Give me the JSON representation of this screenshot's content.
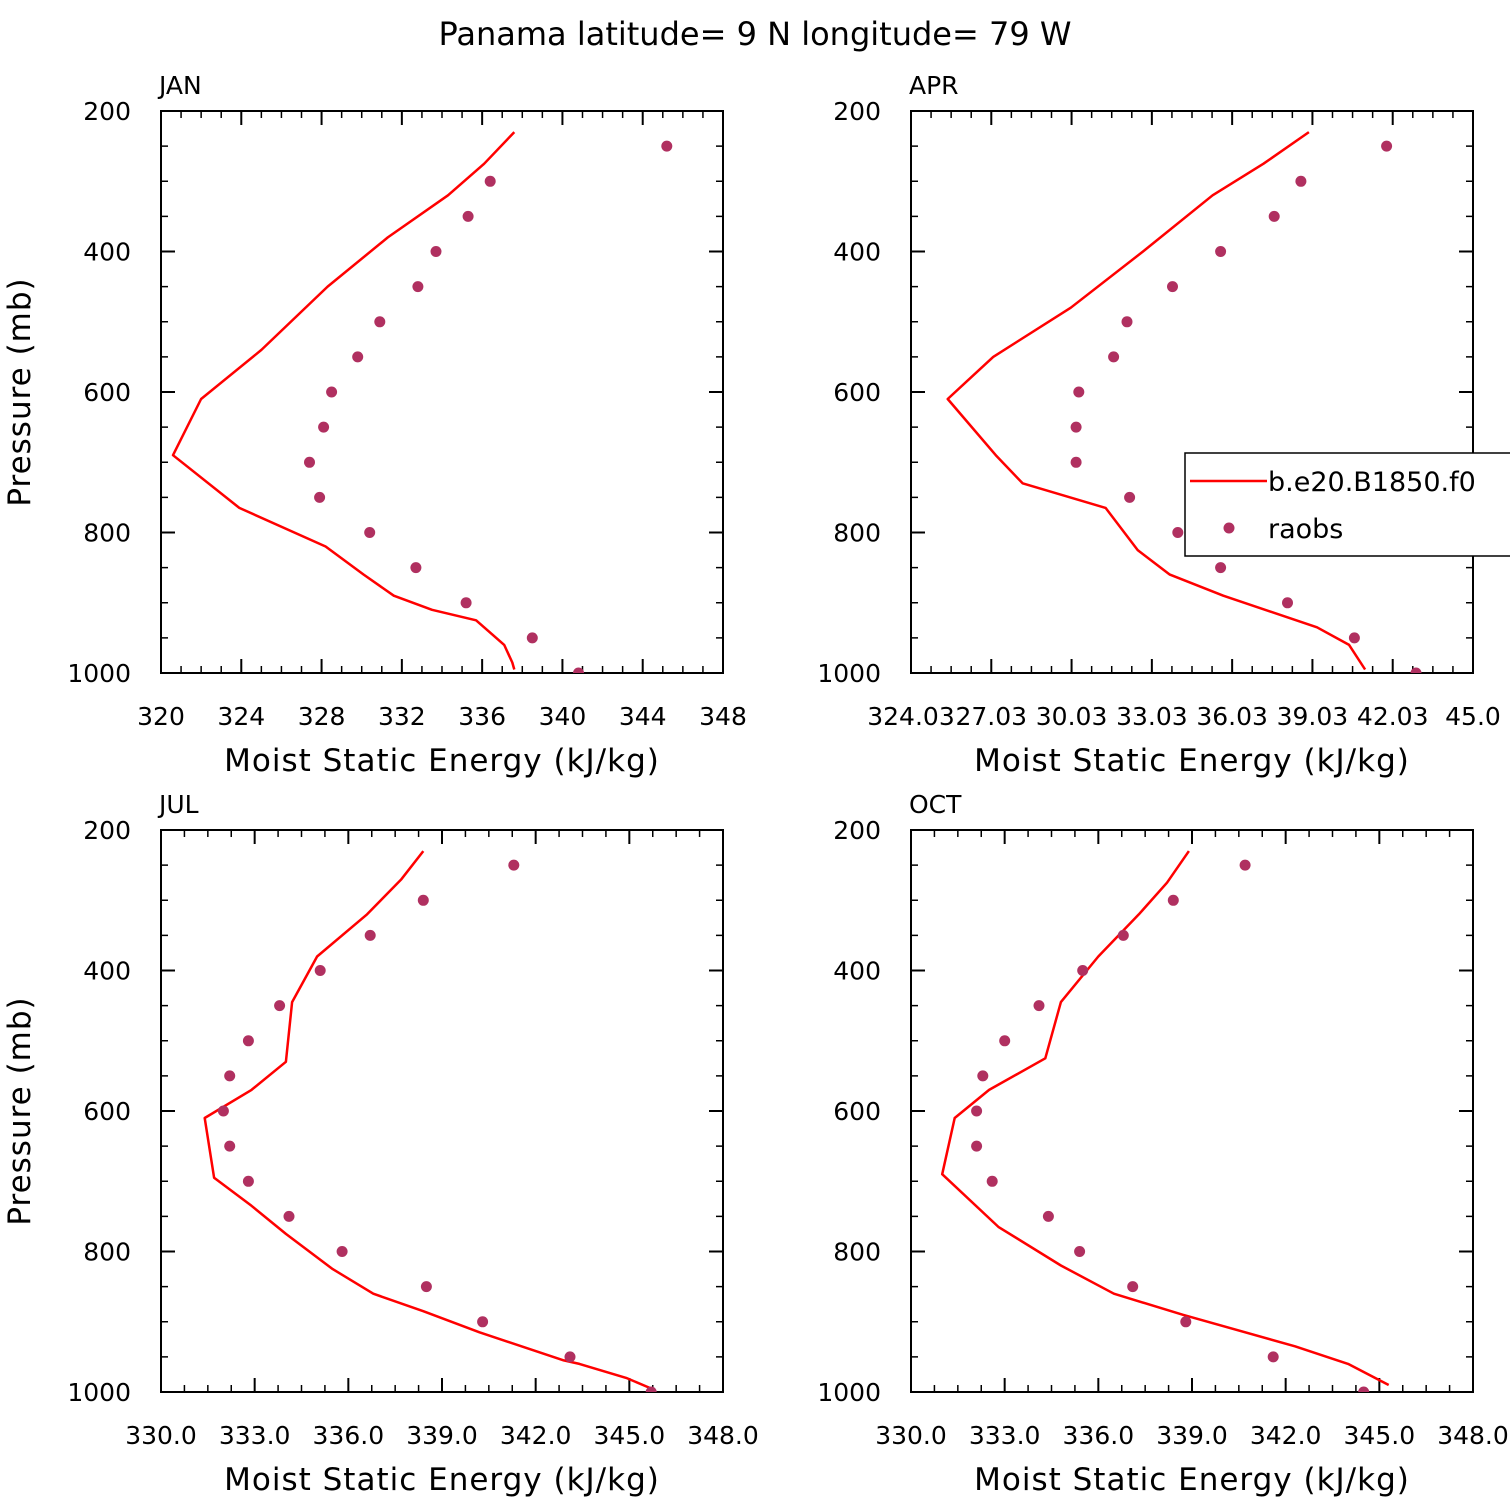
{
  "title": "Panama  latitude= 9 N longitude= 79 W",
  "colors": {
    "model": "#ff0000",
    "obs": "#b03060"
  },
  "legend": {
    "model_label": "b.e20.B1850.f0",
    "obs_label": "raobs"
  },
  "chart_data": [
    {
      "type": "line",
      "panel_label": "JAN",
      "xlabel": "Moist Static Energy (kJ/kg)",
      "ylabel": "Pressure (mb)",
      "xlim": [
        320,
        348
      ],
      "ylim": [
        1000,
        200
      ],
      "xticks": [
        320,
        324,
        328,
        332,
        336,
        340,
        344,
        348
      ],
      "xtick_labels": [
        "320",
        "324",
        "328",
        "332",
        "336",
        "340",
        "344",
        "348"
      ],
      "yticks": [
        200,
        400,
        600,
        800,
        1000
      ],
      "ytick_labels": [
        "200",
        "400",
        "600",
        "800",
        "1000"
      ],
      "legend_visible": false,
      "series": [
        {
          "kind": "line",
          "x": [
            337.6,
            337.5,
            337.1,
            335.7,
            333.5,
            331.6,
            330.1,
            328.2,
            323.9,
            320.6,
            322.0,
            325.0,
            328.3,
            331.3,
            334.3,
            336.1,
            337.6
          ],
          "y": [
            995,
            985,
            960,
            925,
            910,
            890,
            860,
            820,
            765,
            690,
            610,
            540,
            450,
            380,
            320,
            275,
            230
          ]
        },
        {
          "kind": "scatter",
          "x": [
            340.8,
            338.5,
            335.2,
            332.7,
            330.4,
            327.9,
            327.4,
            328.1,
            328.5,
            329.8,
            330.9,
            332.8,
            333.7,
            335.3,
            336.4,
            345.2
          ],
          "y": [
            1000,
            950,
            900,
            850,
            800,
            750,
            700,
            650,
            600,
            550,
            500,
            450,
            400,
            350,
            300,
            250
          ]
        }
      ]
    },
    {
      "type": "line",
      "panel_label": "APR",
      "xlabel": "Moist Static Energy (kJ/kg)",
      "ylabel": "",
      "xlim": [
        324.03,
        345.03
      ],
      "ylim": [
        1000,
        200
      ],
      "xticks": [
        324.03,
        327.03,
        330.03,
        333.03,
        336.03,
        339.03,
        342.03,
        345.03
      ],
      "xtick_labels": [
        "324.03",
        "27.03",
        "30.03",
        "33.03",
        "36.03",
        "39.03",
        "42.03",
        "45.0"
      ],
      "yticks": [
        200,
        400,
        600,
        800,
        1000
      ],
      "ytick_labels": [
        "200",
        "400",
        "600",
        "800",
        "1000"
      ],
      "legend_visible": true,
      "series": [
        {
          "kind": "line",
          "x": [
            341.0,
            340.4,
            339.2,
            335.7,
            333.7,
            332.5,
            331.3,
            328.2,
            327.2,
            325.4,
            327.1,
            330.0,
            332.7,
            335.3,
            337.2,
            338.9
          ],
          "y": [
            995,
            960,
            935,
            890,
            860,
            825,
            765,
            730,
            690,
            610,
            550,
            480,
            400,
            320,
            275,
            230
          ]
        },
        {
          "kind": "scatter",
          "x": [
            342.9,
            340.6,
            338.1,
            335.6,
            334.0,
            332.2,
            330.2,
            330.2,
            330.3,
            331.6,
            332.1,
            333.8,
            335.6,
            337.6,
            338.6,
            341.8
          ],
          "y": [
            1000,
            950,
            900,
            850,
            800,
            750,
            700,
            650,
            600,
            550,
            500,
            450,
            400,
            350,
            300,
            250
          ]
        }
      ]
    },
    {
      "type": "line",
      "panel_label": "JUL",
      "xlabel": "Moist Static Energy (kJ/kg)",
      "ylabel": "Pressure (mb)",
      "xlim": [
        330.0,
        348.0
      ],
      "ylim": [
        1000,
        200
      ],
      "xticks": [
        330.0,
        333.0,
        336.0,
        339.0,
        342.0,
        345.0,
        348.0
      ],
      "xtick_labels": [
        "330.0",
        "333.0",
        "336.0",
        "339.0",
        "342.0",
        "345.0",
        "348.0"
      ],
      "yticks": [
        200,
        400,
        600,
        800,
        1000
      ],
      "ytick_labels": [
        "200",
        "400",
        "600",
        "800",
        "1000"
      ],
      "legend_visible": false,
      "series": [
        {
          "kind": "line",
          "x": [
            345.7,
            344.9,
            343.4,
            342.9,
            340.2,
            338.4,
            336.8,
            335.5,
            334.0,
            332.9,
            331.7,
            331.4,
            332.9,
            334.0,
            334.2,
            335.0,
            336.6,
            337.7,
            338.4
          ],
          "y": [
            995,
            980,
            960,
            955,
            915,
            885,
            860,
            825,
            775,
            735,
            695,
            610,
            570,
            530,
            445,
            380,
            320,
            270,
            230
          ]
        },
        {
          "kind": "scatter",
          "x": [
            345.7,
            343.1,
            340.3,
            338.5,
            335.8,
            334.1,
            332.8,
            332.2,
            332.0,
            332.2,
            332.8,
            333.8,
            335.1,
            336.7,
            338.4,
            341.3
          ],
          "y": [
            1000,
            950,
            900,
            850,
            800,
            750,
            700,
            650,
            600,
            550,
            500,
            450,
            400,
            350,
            300,
            250
          ]
        }
      ]
    },
    {
      "type": "line",
      "panel_label": "OCT",
      "xlabel": "Moist Static Energy (kJ/kg)",
      "ylabel": "",
      "xlim": [
        330.0,
        348.0
      ],
      "ylim": [
        1000,
        200
      ],
      "xticks": [
        330.0,
        333.0,
        336.0,
        339.0,
        342.0,
        345.0,
        348.0
      ],
      "xtick_labels": [
        "330.0",
        "333.0",
        "336.0",
        "339.0",
        "342.0",
        "345.0",
        "348.0"
      ],
      "yticks": [
        200,
        400,
        600,
        800,
        1000
      ],
      "ytick_labels": [
        "200",
        "400",
        "600",
        "800",
        "1000"
      ],
      "legend_visible": false,
      "series": [
        {
          "kind": "line",
          "x": [
            345.3,
            344.0,
            342.3,
            338.7,
            336.5,
            334.8,
            332.8,
            331.0,
            331.4,
            332.5,
            334.3,
            334.8,
            336.0,
            337.3,
            338.2,
            338.9
          ],
          "y": [
            990,
            960,
            935,
            890,
            860,
            820,
            765,
            690,
            610,
            570,
            525,
            445,
            380,
            320,
            275,
            230
          ]
        },
        {
          "kind": "scatter",
          "x": [
            344.5,
            341.6,
            338.8,
            337.1,
            335.4,
            334.4,
            332.6,
            332.1,
            332.1,
            332.3,
            333.0,
            334.1,
            335.5,
            336.8,
            338.4,
            340.7
          ],
          "y": [
            1000,
            950,
            900,
            850,
            800,
            750,
            700,
            650,
            600,
            550,
            500,
            450,
            400,
            350,
            300,
            250
          ]
        }
      ]
    }
  ]
}
